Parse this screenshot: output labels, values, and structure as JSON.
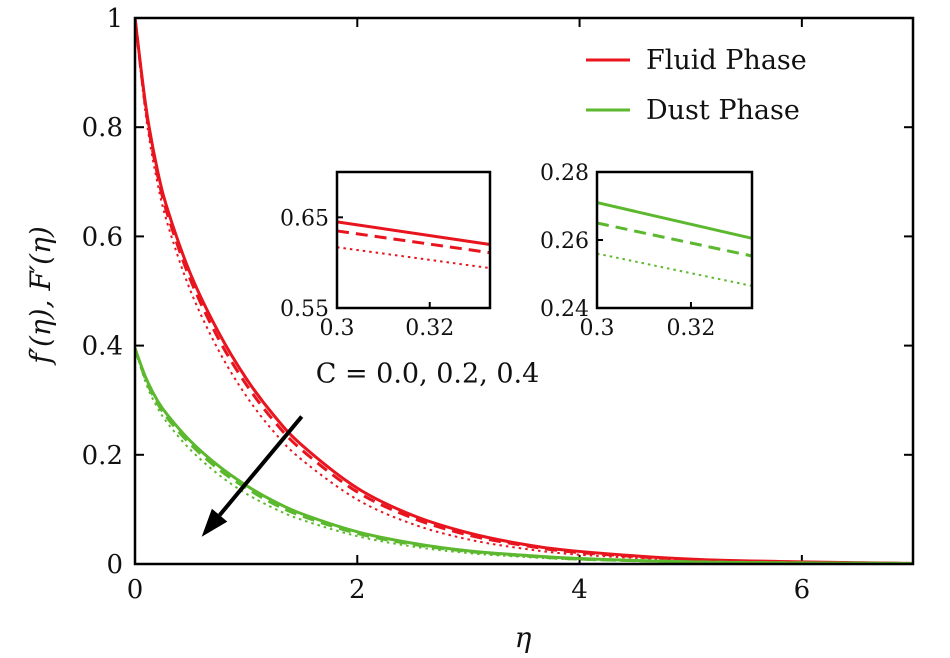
{
  "chart_data": {
    "type": "line",
    "xlabel": "η",
    "ylabel": "f′(η), F′(η)",
    "xlim": [
      0,
      7
    ],
    "ylim": [
      0,
      1
    ],
    "xticks": [
      0,
      2,
      4,
      6
    ],
    "yticks": [
      0,
      0.2,
      0.4,
      0.6,
      0.8,
      1
    ],
    "xtick_labels": [
      "0",
      "2",
      "4",
      "6"
    ],
    "ytick_labels": [
      "0",
      "0.2",
      "0.4",
      "0.6",
      "0.8",
      "1"
    ],
    "legend": {
      "placement": "top-right",
      "entries": [
        {
          "label": "Fluid Phase",
          "color": "#e8141e"
        },
        {
          "label": "Dust Phase",
          "color": "#5cb82e"
        }
      ]
    },
    "annotation": {
      "text": "C = 0.0, 0.2, 0.4",
      "arrow_from": [
        1.5,
        0.27
      ],
      "arrow_to": [
        0.6,
        0.05
      ]
    },
    "series": [
      {
        "group": "Fluid Phase",
        "C": 0.0,
        "style": "solid",
        "color": "#e8141e",
        "x": [
          0,
          0.1,
          0.2,
          0.3,
          0.5,
          0.75,
          1.0,
          1.25,
          1.5,
          2.0,
          2.5,
          3.0,
          3.5,
          4.0,
          5.0,
          6.0,
          7.0
        ],
        "y": [
          1.0,
          0.835,
          0.723,
          0.645,
          0.531,
          0.425,
          0.34,
          0.272,
          0.218,
          0.139,
          0.089,
          0.057,
          0.036,
          0.023,
          0.009,
          0.004,
          0.001
        ]
      },
      {
        "group": "Fluid Phase",
        "C": 0.2,
        "style": "dashed",
        "color": "#e8141e",
        "x": [
          0,
          0.1,
          0.2,
          0.3,
          0.5,
          0.75,
          1.0,
          1.25,
          1.5,
          2.0,
          2.5,
          3.0,
          3.5,
          4.0,
          5.0,
          6.0,
          7.0
        ],
        "y": [
          1.0,
          0.829,
          0.715,
          0.635,
          0.52,
          0.413,
          0.329,
          0.262,
          0.209,
          0.132,
          0.084,
          0.053,
          0.034,
          0.021,
          0.008,
          0.003,
          0.001
        ]
      },
      {
        "group": "Fluid Phase",
        "C": 0.4,
        "style": "dotted",
        "color": "#e8141e",
        "x": [
          0,
          0.1,
          0.2,
          0.3,
          0.5,
          0.75,
          1.0,
          1.25,
          1.5,
          2.0,
          2.5,
          3.0,
          3.5,
          4.0,
          5.0,
          6.0,
          7.0
        ],
        "y": [
          1.0,
          0.818,
          0.7,
          0.618,
          0.5,
          0.392,
          0.308,
          0.242,
          0.191,
          0.118,
          0.073,
          0.045,
          0.028,
          0.017,
          0.007,
          0.003,
          0.001
        ]
      },
      {
        "group": "Dust Phase",
        "C": 0.0,
        "style": "solid",
        "color": "#5cb82e",
        "x": [
          0,
          0.1,
          0.2,
          0.3,
          0.5,
          0.75,
          1.0,
          1.25,
          1.5,
          2.0,
          2.5,
          3.0,
          3.5,
          4.0,
          5.0,
          6.0,
          7.0
        ],
        "y": [
          0.395,
          0.34,
          0.3,
          0.271,
          0.225,
          0.18,
          0.144,
          0.115,
          0.092,
          0.059,
          0.038,
          0.024,
          0.016,
          0.01,
          0.004,
          0.002,
          0.001
        ]
      },
      {
        "group": "Dust Phase",
        "C": 0.2,
        "style": "dashed",
        "color": "#5cb82e",
        "x": [
          0,
          0.1,
          0.2,
          0.3,
          0.5,
          0.75,
          1.0,
          1.25,
          1.5,
          2.0,
          2.5,
          3.0,
          3.5,
          4.0,
          5.0,
          6.0,
          7.0
        ],
        "y": [
          0.395,
          0.336,
          0.295,
          0.265,
          0.219,
          0.174,
          0.139,
          0.11,
          0.088,
          0.056,
          0.036,
          0.023,
          0.015,
          0.009,
          0.004,
          0.002,
          0.001
        ]
      },
      {
        "group": "Dust Phase",
        "C": 0.4,
        "style": "dotted",
        "color": "#5cb82e",
        "x": [
          0,
          0.1,
          0.2,
          0.3,
          0.5,
          0.75,
          1.0,
          1.25,
          1.5,
          2.0,
          2.5,
          3.0,
          3.5,
          4.0,
          5.0,
          6.0,
          7.0
        ],
        "y": [
          0.395,
          0.33,
          0.287,
          0.256,
          0.209,
          0.164,
          0.129,
          0.102,
          0.081,
          0.051,
          0.032,
          0.02,
          0.013,
          0.008,
          0.003,
          0.001,
          0.001
        ]
      }
    ],
    "insets": [
      {
        "xlim": [
          0.3,
          0.333
        ],
        "ylim": [
          0.55,
          0.7
        ],
        "xticks": [
          0.3,
          0.32
        ],
        "xtick_labels": [
          "0.3",
          "0.32"
        ],
        "yticks": [
          0.55,
          0.65
        ],
        "ytick_labels": [
          "0.55",
          "0.65"
        ],
        "lines": [
          {
            "style": "solid",
            "color": "#e8141e",
            "x": [
              0.3,
              0.333
            ],
            "y": [
              0.645,
              0.62
            ]
          },
          {
            "style": "dashed",
            "color": "#e8141e",
            "x": [
              0.3,
              0.333
            ],
            "y": [
              0.635,
              0.611
            ]
          },
          {
            "style": "dotted",
            "color": "#e8141e",
            "x": [
              0.3,
              0.333
            ],
            "y": [
              0.617,
              0.594
            ]
          }
        ]
      },
      {
        "xlim": [
          0.3,
          0.333
        ],
        "ylim": [
          0.24,
          0.28
        ],
        "xticks": [
          0.3,
          0.32
        ],
        "xtick_labels": [
          "0.3",
          "0.32"
        ],
        "yticks": [
          0.24,
          0.26,
          0.28
        ],
        "ytick_labels": [
          "0.24",
          "0.26",
          "0.28"
        ],
        "lines": [
          {
            "style": "solid",
            "color": "#5cb82e",
            "x": [
              0.3,
              0.333
            ],
            "y": [
              0.271,
              0.2605
            ]
          },
          {
            "style": "dashed",
            "color": "#5cb82e",
            "x": [
              0.3,
              0.333
            ],
            "y": [
              0.265,
              0.2553
            ]
          },
          {
            "style": "dotted",
            "color": "#5cb82e",
            "x": [
              0.3,
              0.333
            ],
            "y": [
              0.256,
              0.2465
            ]
          }
        ]
      }
    ]
  }
}
